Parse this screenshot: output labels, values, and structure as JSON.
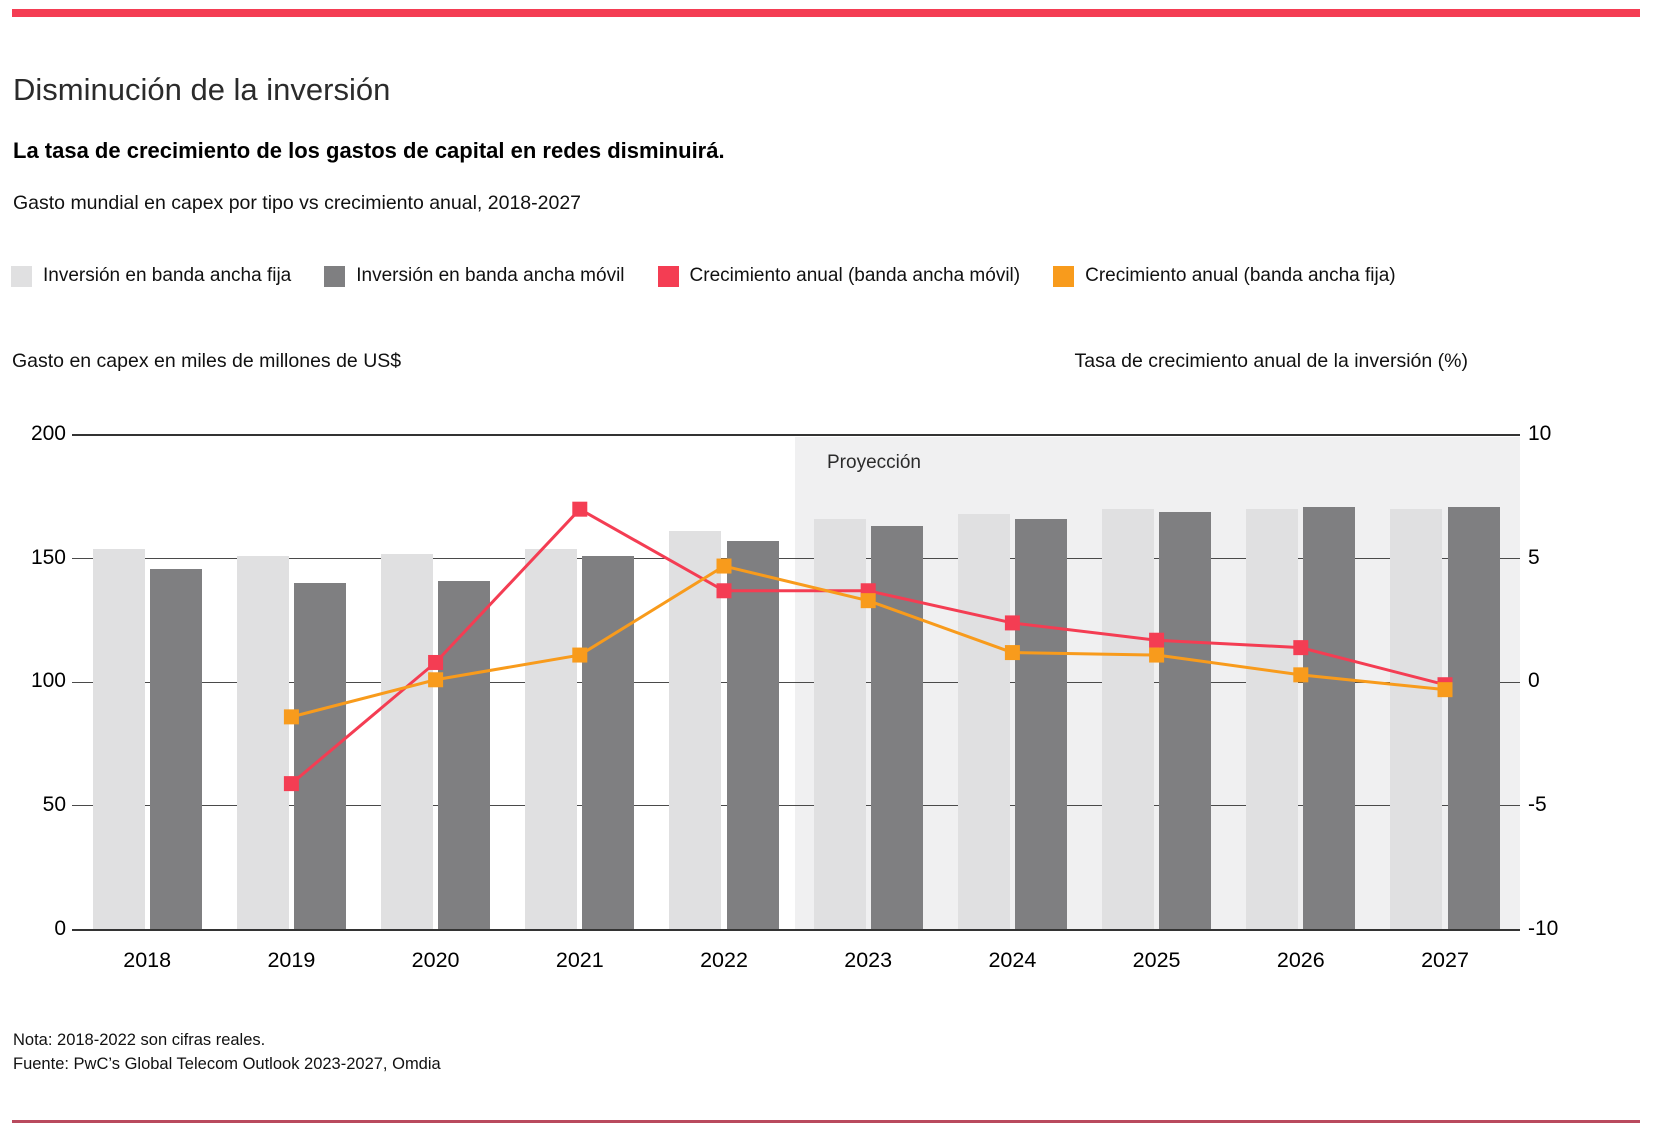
{
  "header": {
    "title": "Disminución de la inversión",
    "subtitle": "La tasa de crecimiento de los gastos de capital en redes disminuirá.",
    "description": "Gasto mundial en capex por tipo vs crecimiento anual, 2018-2027"
  },
  "legend": [
    {
      "label": "Inversión en banda ancha fija",
      "color": "#e0e0e1"
    },
    {
      "label": "Inversión en banda ancha móvil",
      "color": "#7f7f81"
    },
    {
      "label": "Crecimiento anual (banda ancha móvil)",
      "color": "#f43d53"
    },
    {
      "label": "Crecimiento anual (banda ancha fija)",
      "color": "#f89b1c"
    }
  ],
  "axes": {
    "left_caption": "Gasto en capex en miles de millones de US$",
    "right_caption": "Tasa de crecimiento anual de la inversión (%)",
    "left_ticks": [
      "200",
      "150",
      "100",
      "50",
      "0"
    ],
    "right_ticks": [
      "10",
      "5",
      "0",
      "-5",
      "-10"
    ]
  },
  "chart_data": {
    "type": "bar+line combo, dual axis",
    "categories": [
      "2018",
      "2019",
      "2020",
      "2021",
      "2022",
      "2023",
      "2024",
      "2025",
      "2026",
      "2027"
    ],
    "bar_series": [
      {
        "name": "Inversión en banda ancha fija",
        "axis": "left",
        "color": "#e0e0e1",
        "values": [
          154,
          151,
          152,
          154,
          161,
          166,
          168,
          170,
          170,
          170
        ]
      },
      {
        "name": "Inversión en banda ancha móvil",
        "axis": "left",
        "color": "#7f7f81",
        "values": [
          146,
          140,
          141,
          151,
          157,
          163,
          166,
          169,
          171,
          171
        ]
      }
    ],
    "line_series": [
      {
        "name": "Crecimiento anual (banda ancha móvil)",
        "axis": "right",
        "color": "#f43d53",
        "values": [
          null,
          -4.1,
          0.8,
          7.0,
          3.7,
          3.7,
          2.4,
          1.7,
          1.4,
          -0.1
        ]
      },
      {
        "name": "Crecimiento anual (banda ancha fija)",
        "axis": "right",
        "color": "#f89b1c",
        "values": [
          null,
          -1.4,
          0.1,
          1.1,
          4.7,
          3.3,
          1.2,
          1.1,
          0.3,
          -0.3
        ]
      }
    ],
    "left_axis": {
      "label": "Gasto en capex en miles de millones de US$",
      "range": [
        0,
        200
      ],
      "ticks": [
        200,
        150,
        100,
        50,
        0
      ]
    },
    "right_axis": {
      "label": "Tasa de crecimiento anual de la inversión (%)",
      "range": [
        -10,
        10
      ],
      "ticks": [
        10,
        5,
        0,
        -5,
        -10
      ]
    },
    "projection": {
      "label": "Proyección",
      "from_year": "2023",
      "to_year": "2027",
      "note": "shaded band over 2023-2027"
    },
    "grid": "horizontal gridlines on",
    "legend_position": "top"
  },
  "footer": {
    "note": "Nota: 2018-2022 son cifras reales.",
    "source": "Fuente: PwC’s Global Telecom Outlook 2023-2027, Omdia"
  },
  "colors": {
    "accent_red": "#f43d53",
    "accent_orange": "#f89b1c",
    "bar_fixed": "#e0e0e1",
    "bar_mobile": "#7f7f81",
    "projection_band": "#f0f0f1",
    "bottom_rule": "#b94a5e",
    "gridline_major": "#333333",
    "gridline_minor": "#4a4a4a"
  }
}
